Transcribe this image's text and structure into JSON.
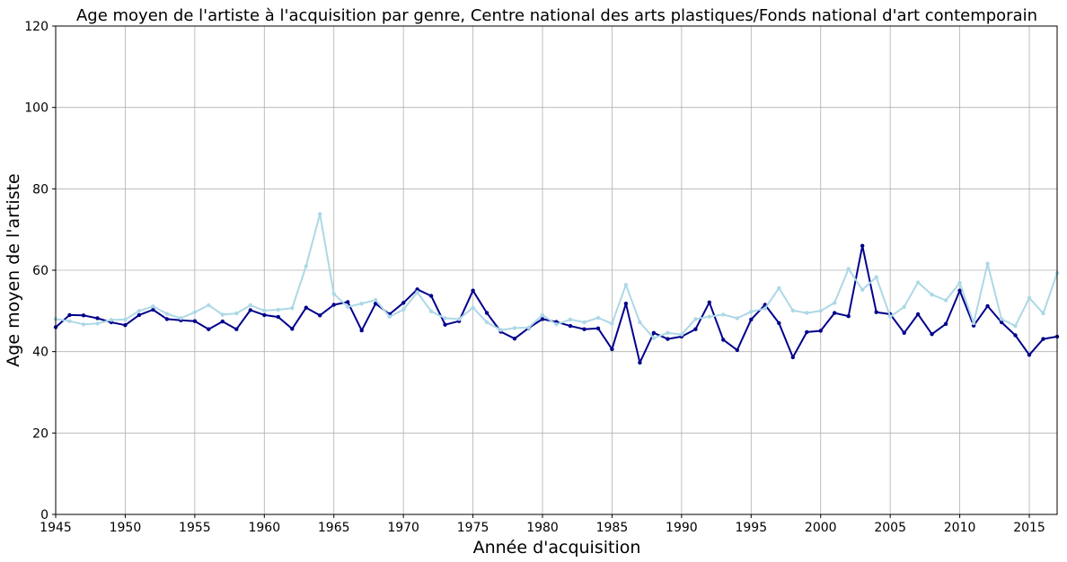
{
  "chart_data": {
    "type": "line",
    "title": "Age moyen de l'artiste à l'acquisition par genre, Centre national des arts plastiques/Fonds national d'art contemporain",
    "xlabel": "Année d'acquisition",
    "ylabel": "Age moyen de l'artiste",
    "xlim": [
      1945,
      2017
    ],
    "ylim": [
      0,
      120
    ],
    "xticks": [
      1945,
      1950,
      1955,
      1960,
      1965,
      1970,
      1975,
      1980,
      1985,
      1990,
      1995,
      2000,
      2005,
      2010,
      2015
    ],
    "yticks": [
      0,
      20,
      40,
      60,
      80,
      100,
      120
    ],
    "grid": true,
    "legend": "none",
    "x": [
      1945,
      1946,
      1947,
      1948,
      1949,
      1950,
      1951,
      1952,
      1953,
      1954,
      1955,
      1956,
      1957,
      1958,
      1959,
      1960,
      1961,
      1962,
      1963,
      1964,
      1965,
      1966,
      1967,
      1968,
      1969,
      1970,
      1971,
      1972,
      1973,
      1974,
      1975,
      1976,
      1977,
      1978,
      1979,
      1980,
      1981,
      1982,
      1983,
      1984,
      1985,
      1986,
      1987,
      1988,
      1989,
      1990,
      1991,
      1992,
      1993,
      1994,
      1995,
      1996,
      1997,
      1998,
      1999,
      2000,
      2001,
      2002,
      2003,
      2004,
      2005,
      2006,
      2007,
      2008,
      2009,
      2010,
      2011,
      2012,
      2013,
      2014,
      2015,
      2016,
      2017
    ],
    "series": [
      {
        "color": "#00008b",
        "values": [
          46,
          49,
          48.9,
          48.2,
          47.2,
          46.5,
          49,
          50.3,
          48,
          47.7,
          47.5,
          45.5,
          47.4,
          45.5,
          50.2,
          49,
          48.5,
          45.6,
          50.8,
          48.9,
          51.5,
          52.2,
          45.2,
          51.8,
          49.2,
          52,
          55.3,
          53.7,
          46.6,
          47.5,
          55,
          49.5,
          44.9,
          43.2,
          45.8,
          48,
          47.3,
          46.3,
          45.5,
          45.7,
          40.6,
          51.8,
          37.3,
          44.6,
          43.1,
          43.7,
          45.5,
          52.1,
          42.9,
          40.4,
          47.9,
          51.5,
          47,
          38.6,
          44.8,
          45.1,
          49.5,
          48.7,
          66,
          49.7,
          49.2,
          44.6,
          49.2,
          44.3,
          46.8,
          55,
          46.4,
          51.2,
          47.2,
          44,
          39.2,
          43.1,
          43.7
        ]
      },
      {
        "color": "#add8e6",
        "values": [
          48,
          47.5,
          46.7,
          46.9,
          47.8,
          47.9,
          50,
          51.1,
          49.3,
          48.2,
          49.7,
          51.4,
          49.1,
          49.4,
          51.4,
          50.1,
          50.3,
          50.7,
          61,
          73.8,
          54.2,
          51,
          51.8,
          52.7,
          48.6,
          50.3,
          54.6,
          49.9,
          48.2,
          48,
          50.8,
          47.2,
          45.3,
          45.8,
          45.9,
          49,
          46.7,
          47.9,
          47.2,
          48.3,
          46.9,
          56.4,
          47.2,
          43.3,
          44.6,
          44.2,
          48,
          48.6,
          49.1,
          48.2,
          49.8,
          50.6,
          55.6,
          50.1,
          49.5,
          50,
          52,
          60.3,
          55.2,
          58.3,
          48.6,
          51,
          57,
          54,
          52.6,
          56.9,
          47,
          61.6,
          48,
          46.3,
          53.2,
          49.4,
          59.3
        ]
      }
    ]
  }
}
